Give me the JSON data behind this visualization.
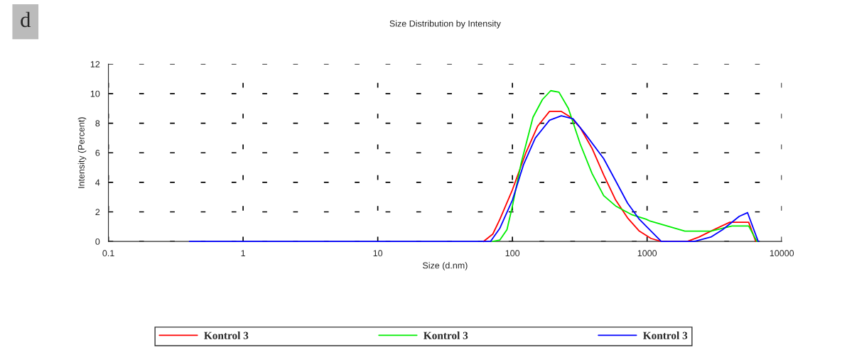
{
  "chart_data": {
    "type": "line",
    "title": "Size Distribution by Intensity",
    "xlabel": "Size (d.nm)",
    "ylabel": "Intensity (Percent)",
    "annotations": [
      "d"
    ],
    "log": "x",
    "xlim": [
      0.1,
      10000
    ],
    "xticks": [
      0.1,
      1,
      10,
      100,
      1000,
      10000
    ],
    "ylim": [
      0,
      12
    ],
    "yticks": [
      0,
      2,
      4,
      6,
      8,
      10,
      12
    ],
    "grid": true,
    "legend": "bottom",
    "line_style": "solid",
    "marker": "none",
    "series": [
      {
        "name": "Kontrol 3",
        "color": "#ff0000",
        "x": [
          60.9,
          71.5,
          80.7,
          100,
          125.9,
          154,
          188.6,
          230.7,
          271,
          318.5,
          390,
          476,
          584,
          715,
          875,
          1070,
          1274,
          1986,
          2432,
          2977,
          4110,
          5677,
          6410
        ],
        "values": [
          0,
          0.5,
          1.5,
          3.5,
          6,
          7.8,
          8.8,
          8.8,
          8.4,
          7.7,
          6.3,
          4.5,
          2.8,
          1.6,
          0.7,
          0.2,
          0,
          0,
          0.3,
          0.7,
          1.3,
          1.3,
          0
        ]
      },
      {
        "name": "Kontrol 3",
        "color": "#00ee00",
        "x": [
          71.5,
          80.7,
          91.1,
          100,
          116.1,
          142.1,
          167,
          192.4,
          221.6,
          260.3,
          318.5,
          390,
          476,
          584,
          775,
          985,
          1041,
          1908,
          2977,
          4276,
          5677,
          6540
        ],
        "values": [
          0,
          0.1,
          0.8,
          2.4,
          5.3,
          8.4,
          9.6,
          10.2,
          10.1,
          9,
          6.6,
          4.6,
          3.1,
          2.4,
          1.8,
          1.5,
          1.4,
          0.7,
          0.7,
          1.05,
          1.05,
          0
        ]
      },
      {
        "name": "Kontrol 3",
        "color": "#0000ff",
        "x": [
          0.4,
          68.7,
          80.7,
          100,
          120.9,
          147.9,
          188.6,
          230.7,
          282,
          345.5,
          476,
          584,
          715,
          875,
          1070,
          1274,
          2243,
          2977,
          3640,
          4836,
          5566,
          6680
        ],
        "values": [
          0,
          0,
          0.9,
          2.8,
          5.2,
          7,
          8.2,
          8.5,
          8.3,
          7.3,
          5.6,
          4.1,
          2.6,
          1.5,
          0.7,
          0,
          0,
          0.3,
          0.8,
          1.7,
          1.95,
          0
        ]
      }
    ]
  }
}
